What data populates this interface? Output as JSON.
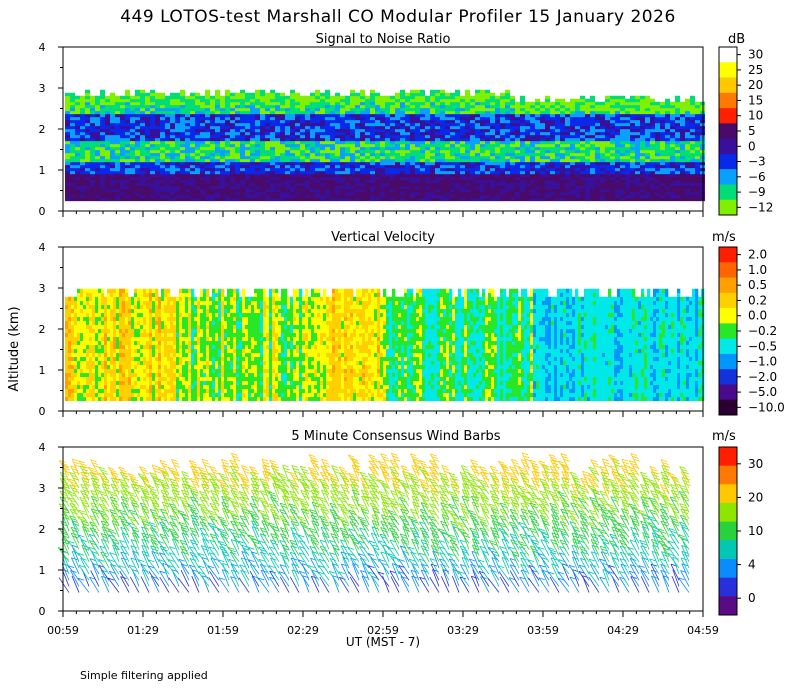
{
  "title": "449 LOTOS-test Marshall CO Modular Profiler 15 January 2026",
  "footer_note": "Simple filtering applied",
  "x_axis": {
    "label": "UT  (MST - 7)",
    "tick_labels": [
      "00:59",
      "01:29",
      "01:59",
      "02:29",
      "02:59",
      "03:29",
      "03:59",
      "04:29",
      "04:59"
    ],
    "range_hours": [
      0.983,
      4.983
    ]
  },
  "y_axis": {
    "label": "Altitude (km)",
    "tick_labels": [
      "0",
      "1",
      "2",
      "3",
      "4"
    ],
    "range_km": [
      0,
      4
    ]
  },
  "panels": [
    {
      "title": "Signal to Noise Ratio",
      "unit": "dB",
      "colorbar_labels": [
        "30",
        "25",
        "20",
        "15",
        "10",
        "5",
        "0",
        "−3",
        "−6",
        "−9",
        "−12"
      ],
      "colors": [
        "#ffffff",
        "#ffff00",
        "#ffc800",
        "#ff7800",
        "#ff2000",
        "#4a0a6a",
        "#38109a",
        "#0a28e8",
        "#0aa0ff",
        "#00dc78",
        "#80f000"
      ]
    },
    {
      "title": "Vertical Velocity",
      "unit": "m/s",
      "colorbar_labels": [
        "2.0",
        "1.0",
        "0.5",
        "0.2",
        "0.0",
        "−0.2",
        "−0.5",
        "−1.0",
        "−2.0",
        "−5.0",
        "−10.0"
      ],
      "colors": [
        "#ff1e00",
        "#ff6400",
        "#ffa000",
        "#ffd000",
        "#ffff00",
        "#28e628",
        "#00e8e8",
        "#0096ff",
        "#1432dc",
        "#4a0a8c",
        "#2a0030"
      ]
    },
    {
      "title": "5 Minute Consensus Wind Barbs",
      "unit": "m/s",
      "colorbar_labels": [
        "30",
        "20",
        "10",
        "4",
        "0"
      ],
      "colors": [
        "#ff1e00",
        "#ff7800",
        "#ffc800",
        "#8ce600",
        "#28d23c",
        "#00c8b4",
        "#0a8cff",
        "#2830dc",
        "#5a0a82"
      ]
    }
  ],
  "chart_data": [
    {
      "type": "heatmap",
      "title": "Signal to Noise Ratio",
      "unit": "dB",
      "x_range_ut": [
        "00:59",
        "04:59"
      ],
      "ylim_km": [
        0,
        4
      ],
      "data_top_km": 2.9,
      "layers": [
        {
          "altitude_km": [
            0.25,
            0.9
          ],
          "snr_db": 3,
          "description": "dark purple"
        },
        {
          "altitude_km": [
            0.9,
            1.2
          ],
          "snr_db": -3,
          "description": "blue"
        },
        {
          "altitude_km": [
            1.2,
            1.7
          ],
          "snr_db": -9,
          "description": "green/cyan"
        },
        {
          "altitude_km": [
            1.7,
            2.3
          ],
          "snr_db": -3,
          "description": "blue/purple"
        },
        {
          "altitude_km": [
            2.3,
            2.9
          ],
          "snr_db": -9,
          "description": "green"
        }
      ]
    },
    {
      "type": "heatmap",
      "title": "Vertical Velocity",
      "unit": "m/s",
      "x_range_ut": [
        "00:59",
        "04:59"
      ],
      "ylim_km": [
        0,
        4
      ],
      "data_top_km": 2.9,
      "segments": [
        {
          "ut": [
            "00:59",
            "01:40"
          ],
          "w_ms": 0.1
        },
        {
          "ut": [
            "01:40",
            "02:29"
          ],
          "w_ms": -0.1
        },
        {
          "ut": [
            "02:29",
            "03:00"
          ],
          "w_ms": 0.1
        },
        {
          "ut": [
            "03:00",
            "03:55"
          ],
          "w_ms": -0.3
        },
        {
          "ut": [
            "03:55",
            "04:59"
          ],
          "w_ms": -0.6
        }
      ]
    },
    {
      "type": "scatter",
      "title": "5 Minute Consensus Wind Barbs",
      "unit": "m/s",
      "x_range_ut": [
        "00:59",
        "04:59"
      ],
      "ylim_km": [
        0,
        4
      ],
      "speed_by_altitude": [
        {
          "altitude_km": 0.5,
          "speed_ms": 3
        },
        {
          "altitude_km": 1.0,
          "speed_ms": 6
        },
        {
          "altitude_km": 2.0,
          "speed_ms": 10
        },
        {
          "altitude_km": 3.0,
          "speed_ms": 15
        },
        {
          "altitude_km": 3.8,
          "speed_ms": 20
        }
      ]
    }
  ]
}
